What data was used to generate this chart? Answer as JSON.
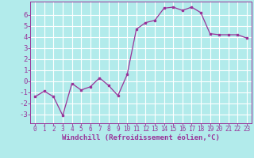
{
  "xlabel": "Windchill (Refroidissement éolien,°C)",
  "x": [
    0,
    1,
    2,
    3,
    4,
    5,
    6,
    7,
    8,
    9,
    10,
    11,
    12,
    13,
    14,
    15,
    16,
    17,
    18,
    19,
    20,
    21,
    22,
    23
  ],
  "y": [
    -1.4,
    -0.9,
    -1.4,
    -3.1,
    -0.2,
    -0.8,
    -0.5,
    0.3,
    -0.4,
    -1.3,
    0.6,
    4.7,
    5.3,
    5.5,
    6.6,
    6.7,
    6.4,
    6.7,
    6.2,
    4.3,
    4.2,
    4.2,
    4.2,
    3.9
  ],
  "line_color": "#993399",
  "bg_color": "#b2ebeb",
  "grid_color": "#ffffff",
  "ylim": [
    -3.8,
    7.2
  ],
  "yticks": [
    -3,
    -2,
    -1,
    0,
    1,
    2,
    3,
    4,
    5,
    6
  ],
  "xticks": [
    0,
    1,
    2,
    3,
    4,
    5,
    6,
    7,
    8,
    9,
    10,
    11,
    12,
    13,
    14,
    15,
    16,
    17,
    18,
    19,
    20,
    21,
    22,
    23
  ],
  "xlabel_fontsize": 6.5,
  "tick_fontsize_x": 5.5,
  "tick_fontsize_y": 6.5
}
